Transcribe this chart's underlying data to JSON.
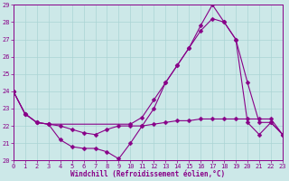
{
  "xlabel": "Windchill (Refroidissement éolien,°C)",
  "xlim": [
    0,
    23
  ],
  "ylim": [
    20,
    29
  ],
  "xticks": [
    0,
    1,
    2,
    3,
    4,
    5,
    6,
    7,
    8,
    9,
    10,
    11,
    12,
    13,
    14,
    15,
    16,
    17,
    18,
    19,
    20,
    21,
    22,
    23
  ],
  "yticks": [
    20,
    21,
    22,
    23,
    24,
    25,
    26,
    27,
    28,
    29
  ],
  "bg_color": "#cce8e8",
  "line_color": "#880088",
  "grid_color": "#aad4d4",
  "series": [
    {
      "x": [
        0,
        1,
        2,
        3,
        4,
        5,
        6,
        7,
        8,
        9,
        10,
        11,
        12,
        13,
        14,
        15,
        16,
        17,
        18,
        19,
        20,
        21,
        22,
        23
      ],
      "y": [
        24.0,
        22.7,
        22.2,
        22.1,
        22.0,
        21.8,
        21.6,
        21.5,
        21.8,
        22.0,
        22.0,
        22.0,
        22.1,
        22.2,
        22.3,
        22.3,
        22.4,
        22.4,
        22.4,
        22.4,
        22.4,
        22.4,
        22.4,
        21.5
      ]
    },
    {
      "x": [
        0,
        1,
        2,
        3,
        10,
        11,
        12,
        13,
        14,
        15,
        16,
        17,
        18,
        19,
        20,
        21,
        22,
        23
      ],
      "y": [
        24.0,
        22.7,
        22.2,
        22.1,
        22.1,
        22.5,
        23.5,
        24.5,
        25.5,
        26.5,
        27.5,
        28.2,
        28.0,
        27.0,
        24.5,
        22.2,
        22.2,
        21.5
      ]
    },
    {
      "x": [
        0,
        1,
        2,
        3,
        4,
        5,
        6,
        7,
        8,
        9,
        10,
        11,
        12,
        13,
        14,
        15,
        16,
        17,
        18,
        19,
        20,
        21,
        22,
        23
      ],
      "y": [
        24.0,
        22.7,
        22.2,
        22.1,
        21.2,
        20.8,
        20.7,
        20.7,
        20.5,
        20.1,
        21.0,
        22.0,
        23.0,
        24.5,
        25.5,
        26.5,
        27.8,
        29.0,
        28.0,
        27.0,
        22.2,
        21.5,
        22.2,
        21.5
      ]
    }
  ],
  "marker": "D",
  "markersize": 2.5,
  "linewidth": 0.8
}
